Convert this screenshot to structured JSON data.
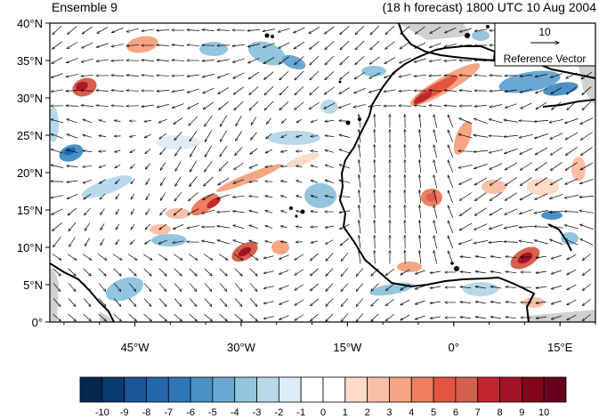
{
  "header": {
    "left_title": "Ensemble 9",
    "right_title": "(18 h forecast) 1800 UTC 10 Aug 2004"
  },
  "map": {
    "lat_range": [
      0,
      40
    ],
    "lon_range": [
      -57,
      20
    ],
    "lat_labels": [
      "40°N",
      "35°N",
      "30°N",
      "25°N",
      "20°N",
      "15°N",
      "10°N",
      "5°N",
      "0°"
    ],
    "lat_values": [
      40,
      35,
      30,
      25,
      20,
      15,
      10,
      5,
      0
    ],
    "lon_labels": [
      "45°W",
      "30°W",
      "15°W",
      "0°",
      "15°E"
    ],
    "lon_values": [
      -45,
      -30,
      -15,
      0,
      15
    ],
    "reference_vector": {
      "value": "10",
      "label": "Reference Vector"
    }
  },
  "colorbar": {
    "labels": [
      "-10",
      "-9",
      "-8",
      "-7",
      "-6",
      "-5",
      "-4",
      "-3",
      "-2",
      "-1",
      "0",
      "1",
      "2",
      "3",
      "4",
      "5",
      "6",
      "7",
      "8",
      "9",
      "10"
    ],
    "colors": [
      "#05274f",
      "#0a3b70",
      "#1a5598",
      "#2567ad",
      "#2e78b9",
      "#4a91c6",
      "#6aa9d3",
      "#92c5de",
      "#b7d9ea",
      "#dcedf7",
      "#ffffff",
      "#ffffff",
      "#fddbc7",
      "#f9c0a6",
      "#f4a582",
      "#ef7d5f",
      "#e4553f",
      "#d6604d",
      "#c1272d",
      "#a31426",
      "#7f0718",
      "#67001f"
    ],
    "label_colors": [
      "#05274f",
      "#0a3b70",
      "#1a5598",
      "#2567ad",
      "#2e78b9",
      "#4a91c6",
      "#6aa9d3",
      "#92c5de",
      "#b7d9ea",
      "#dcedf7",
      "#ffffff",
      "#ffffff",
      "#fddbc7",
      "#f9c0a6",
      "#f4a582",
      "#ef7d5f",
      "#e4553f",
      "#c1272d",
      "#a31426",
      "#7f0718",
      "#67001f"
    ]
  }
}
